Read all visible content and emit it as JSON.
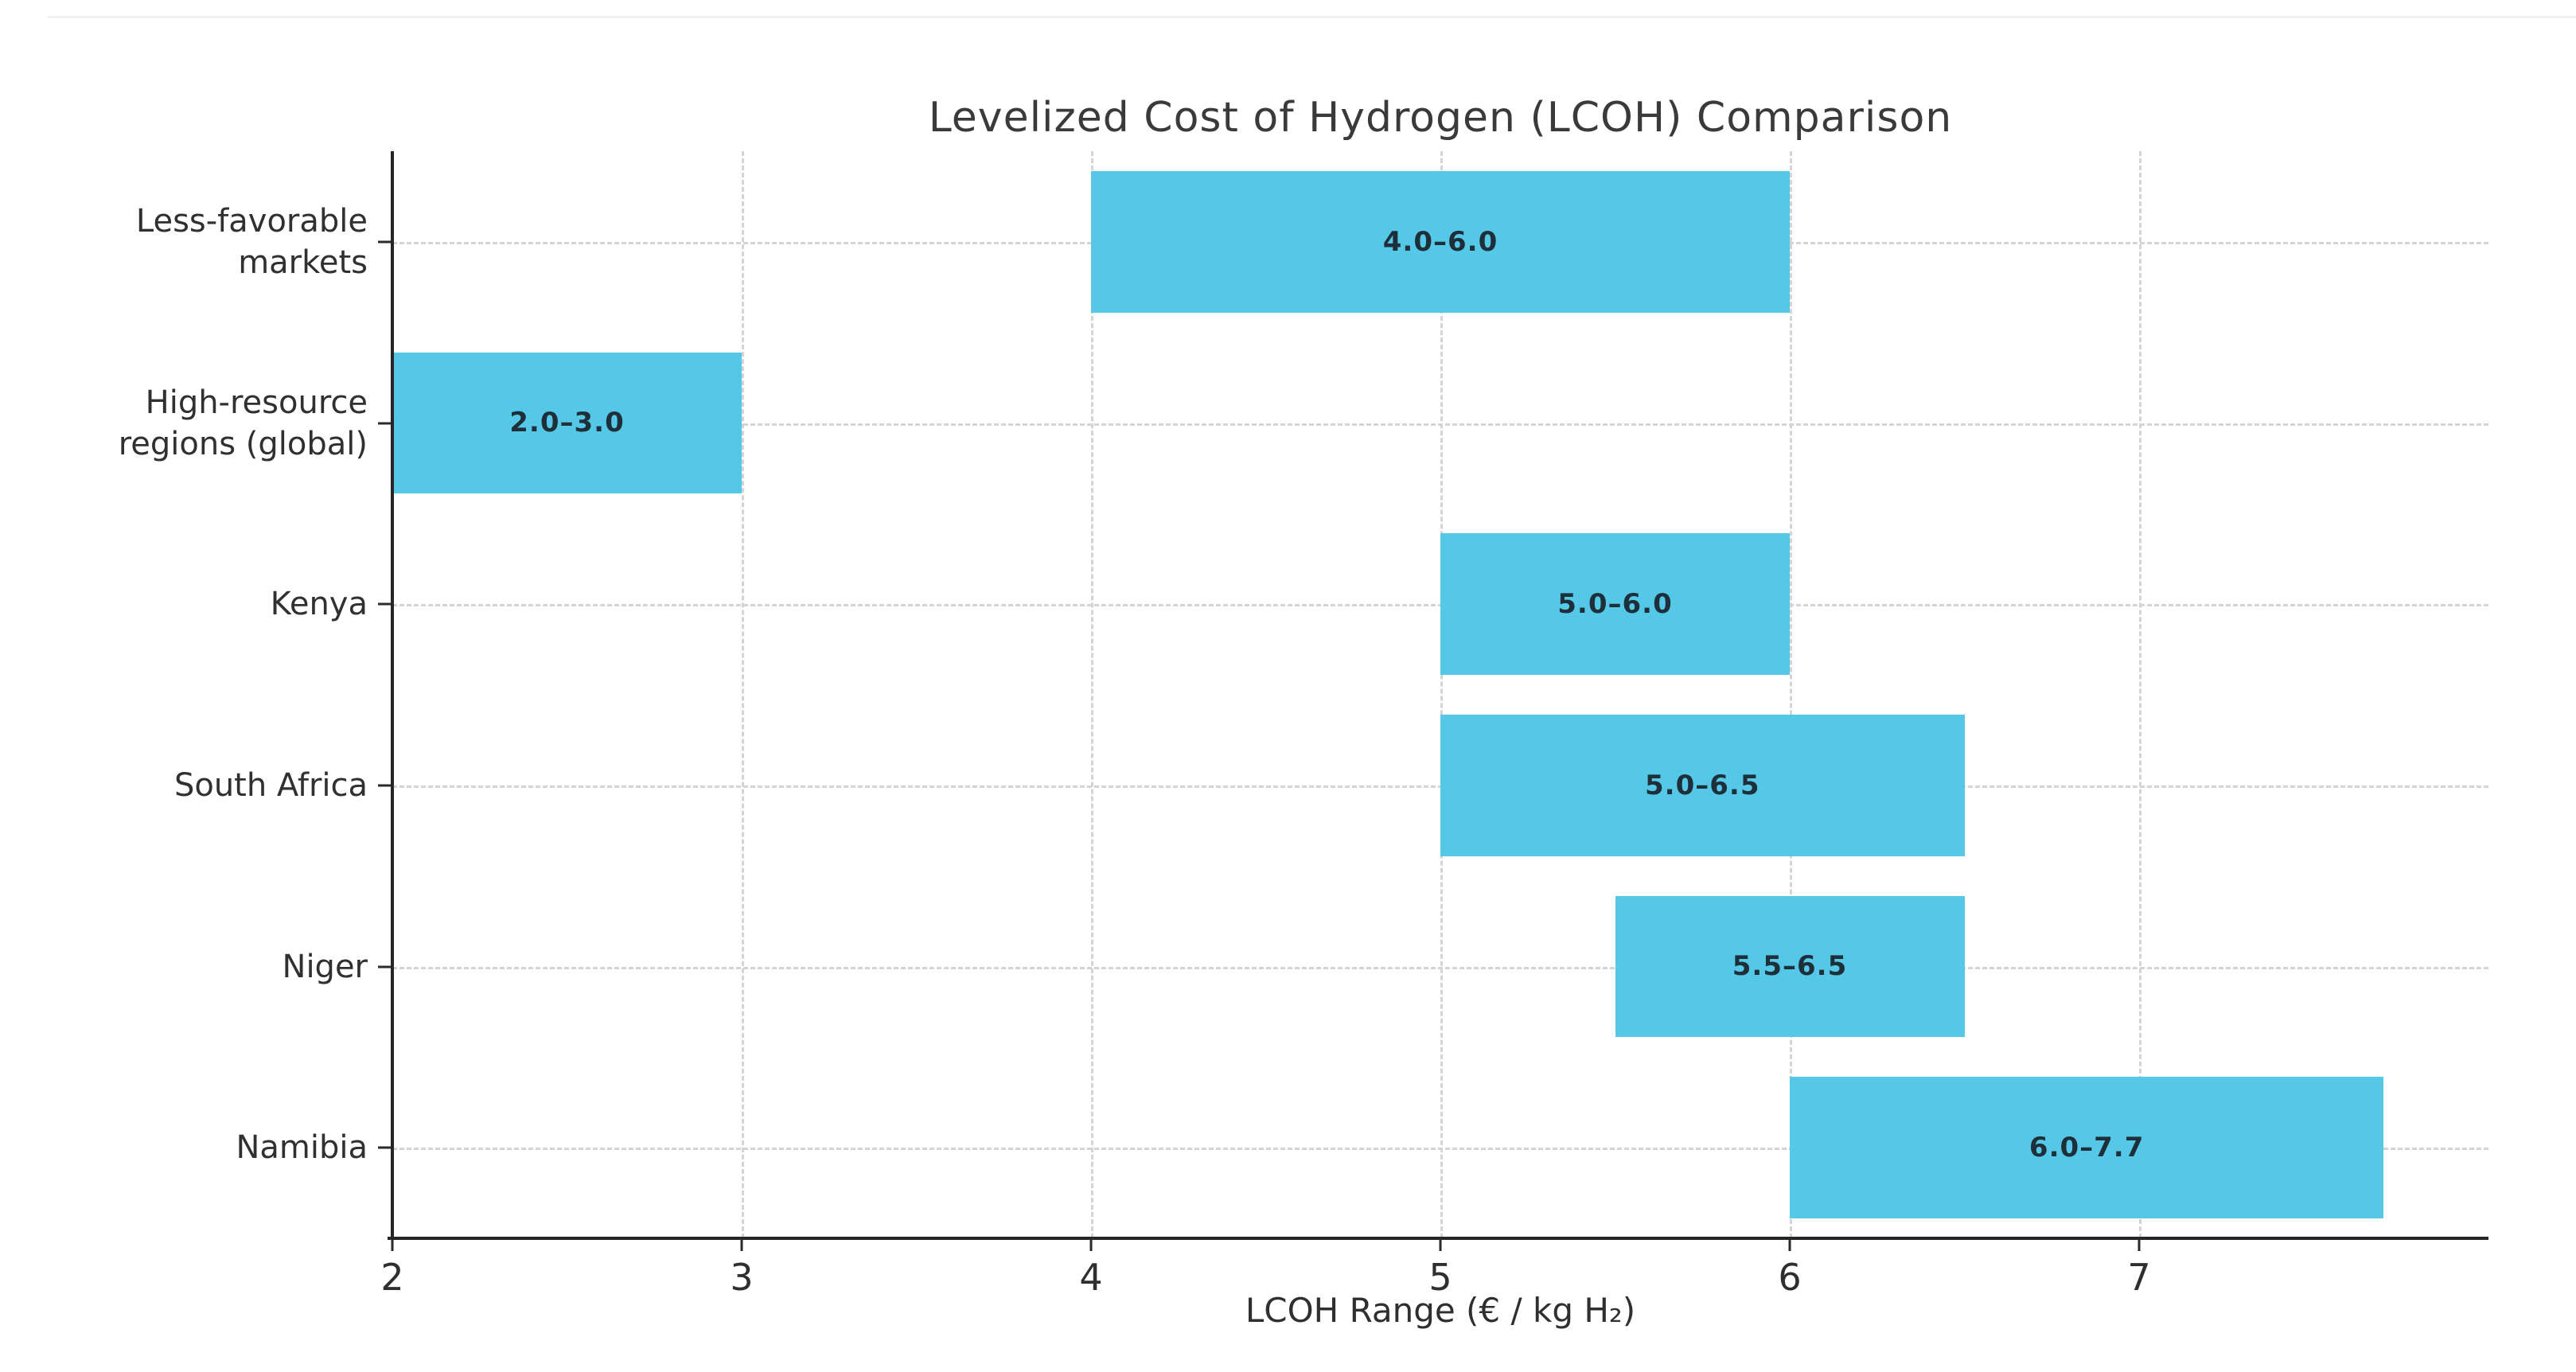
{
  "figure": {
    "background": "#ffffff"
  },
  "chart_data": {
    "type": "bar",
    "orientation": "horizontal-range",
    "title": "Levelized Cost of Hydrogen (LCOH) Comparison",
    "xlabel": "LCOH Range (€ / kg H₂)",
    "ylabel": "",
    "categories": [
      "Less-favorable\nmarkets",
      "High-resource\nregions (global)",
      "Kenya",
      "South Africa",
      "Niger",
      "Namibia"
    ],
    "ranges": [
      [
        4.0,
        6.0
      ],
      [
        2.0,
        3.0
      ],
      [
        5.0,
        6.0
      ],
      [
        5.0,
        6.5
      ],
      [
        5.5,
        6.5
      ],
      [
        6.0,
        7.7
      ]
    ],
    "bar_labels": [
      "4.0–6.0",
      "2.0–3.0",
      "5.0–6.0",
      "5.0–6.5",
      "5.5–6.5",
      "6.0–7.7"
    ],
    "xlim": [
      2,
      8
    ],
    "xticks": [
      2,
      3,
      4,
      5,
      6,
      7
    ],
    "xtick_labels": [
      "2",
      "3",
      "4",
      "5",
      "6",
      "7"
    ],
    "bar_color": "#55c8e8",
    "grid": true,
    "grid_style": "dashed",
    "grid_color": "#d4d4d4",
    "legend": "none"
  }
}
